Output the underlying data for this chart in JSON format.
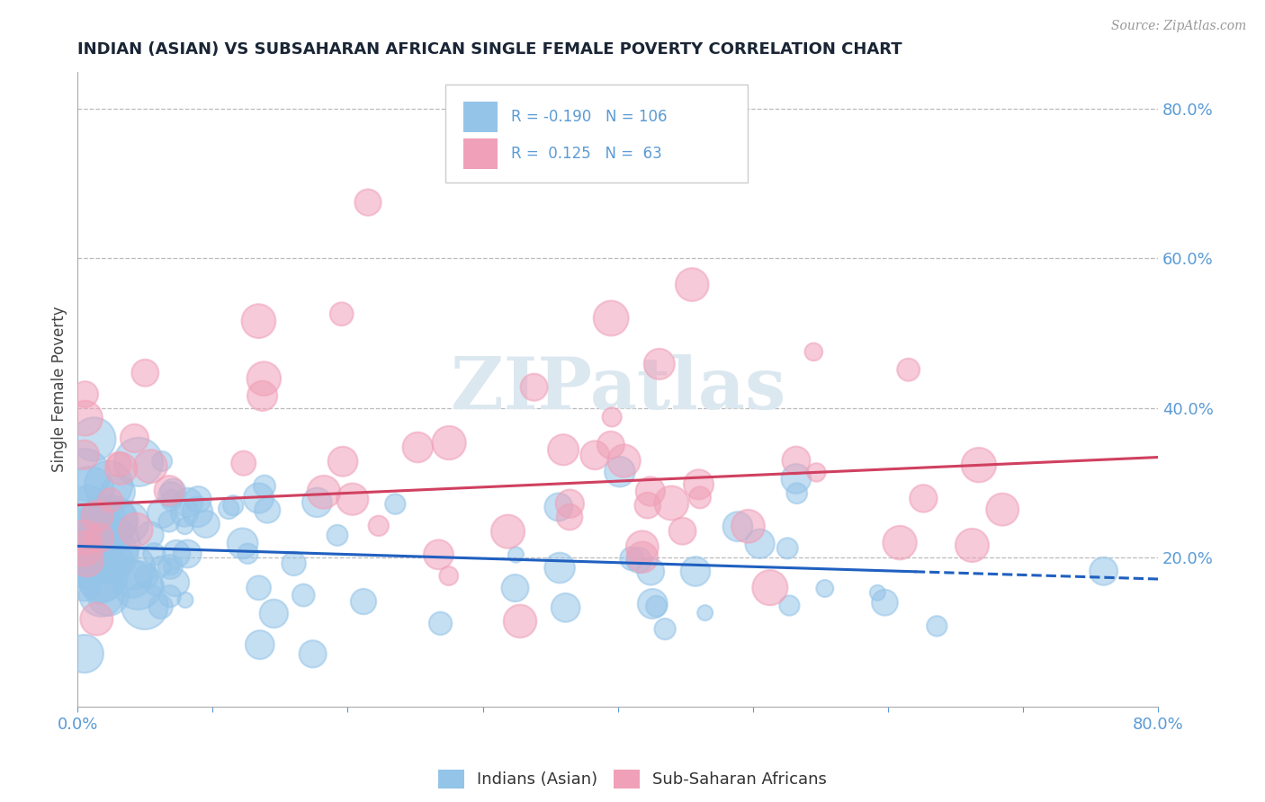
{
  "title": "INDIAN (ASIAN) VS SUBSAHARAN AFRICAN SINGLE FEMALE POVERTY CORRELATION CHART",
  "source_text": "Source: ZipAtlas.com",
  "ylabel": "Single Female Poverty",
  "xlim": [
    0.0,
    0.8
  ],
  "ylim": [
    0.0,
    0.85
  ],
  "xticks": [
    0.0,
    0.1,
    0.2,
    0.3,
    0.4,
    0.5,
    0.6,
    0.7,
    0.8
  ],
  "xticklabels": [
    "0.0%",
    "",
    "",
    "",
    "",
    "",
    "",
    "",
    "80.0%"
  ],
  "ytick_positions": [
    0.2,
    0.4,
    0.6,
    0.8
  ],
  "ytick_labels": [
    "20.0%",
    "40.0%",
    "60.0%",
    "80.0%"
  ],
  "blue_color": "#94c4e8",
  "pink_color": "#f0a0b8",
  "blue_line_color": "#2060c0",
  "pink_line_color": "#d04060",
  "grid_color": "#bbbbbb",
  "axis_color": "#aaaaaa",
  "tick_label_color": "#5b9bd5",
  "title_color": "#1a2535",
  "watermark_color": "#dce8f0",
  "legend_R1": "-0.190",
  "legend_N1": "106",
  "legend_R2": "0.125",
  "legend_N2": "63",
  "blue_intercept": 0.215,
  "blue_slope": -0.055,
  "pink_intercept": 0.27,
  "pink_slope": 0.08
}
